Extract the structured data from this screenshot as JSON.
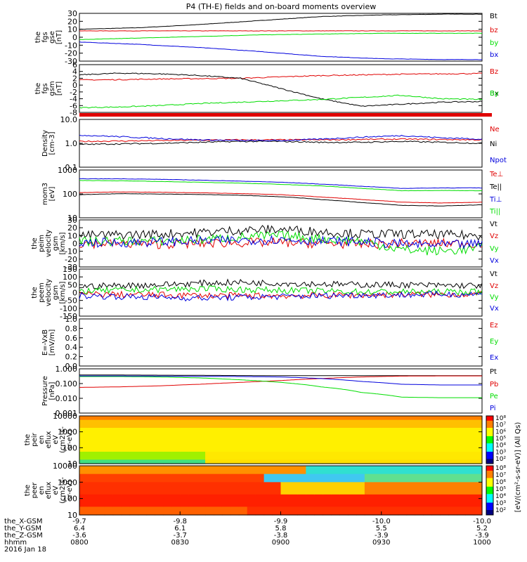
{
  "title": "P4 (TH-E) fields and on-board moments overview",
  "colors": {
    "black": "#000000",
    "red": "#e00000",
    "green": "#00dd00",
    "blue": "#0000dd"
  },
  "chart_data": [
    {
      "id": "p1",
      "type": "line",
      "ylabel": [
        "the",
        "fgs",
        "gse",
        "[nT]"
      ],
      "ylim": [
        -30,
        30
      ],
      "yticks": [
        "30",
        "20",
        "10",
        "0",
        "-10",
        "-20",
        "-30"
      ],
      "x": [
        0,
        0.15,
        0.3,
        0.45,
        0.6,
        0.75,
        0.9,
        1.0
      ],
      "series": [
        {
          "name": "Bt",
          "color": "#000000",
          "values": [
            10,
            12,
            16,
            21,
            26,
            28,
            29,
            29
          ]
        },
        {
          "name": "bz",
          "color": "#e00000",
          "values": [
            8,
            8,
            8,
            8,
            8,
            8,
            8,
            8
          ]
        },
        {
          "name": "by",
          "color": "#00dd00",
          "values": [
            -3,
            -1,
            1,
            3,
            4,
            5,
            5,
            5
          ]
        },
        {
          "name": "bx",
          "color": "#0000dd",
          "values": [
            -6,
            -9,
            -13,
            -18,
            -24,
            -27,
            -28,
            -28
          ]
        }
      ]
    },
    {
      "id": "p2",
      "type": "line",
      "ylabel": [
        "the",
        "fgs",
        "gsm",
        "[nT]"
      ],
      "ylim": [
        -8,
        6
      ],
      "yticks": [
        "6",
        "4",
        "2",
        "0",
        "-2",
        "-4",
        "-6",
        "-8"
      ],
      "x": [
        0,
        0.1,
        0.2,
        0.3,
        0.4,
        0.5,
        0.6,
        0.7,
        0.8,
        0.9,
        1.0
      ],
      "series": [
        {
          "name": "Bz",
          "color": "#e00000",
          "values": [
            1.5,
            1.6,
            1.8,
            1.9,
            2.0,
            2.4,
            2.8,
            3.0,
            3.2,
            3.3,
            3.4
          ]
        },
        {
          "name": "Bx",
          "color": "#000000",
          "values": [
            3.0,
            3.5,
            3.3,
            2.8,
            2.0,
            -1.0,
            -4.0,
            -6.2,
            -5.6,
            -5.0,
            -4.8
          ]
        },
        {
          "name": "By",
          "color": "#00dd00",
          "values": [
            -6.6,
            -6.4,
            -6.0,
            -5.4,
            -5.0,
            -4.6,
            -4.2,
            -3.6,
            -3.0,
            -4.0,
            -4.2
          ]
        }
      ]
    },
    {
      "id": "p3",
      "type": "line",
      "ylabel": [
        "Density",
        "[cm-3]"
      ],
      "ylim": [
        0.1,
        10
      ],
      "log": true,
      "yticks": [
        "10.0",
        "1.0",
        "0.1"
      ],
      "x": [
        0,
        0.1,
        0.2,
        0.3,
        0.4,
        0.5,
        0.6,
        0.7,
        0.8,
        0.9,
        1.0
      ],
      "series": [
        {
          "name": "Ne",
          "color": "#e00000",
          "values": [
            1.2,
            1.25,
            1.3,
            1.35,
            1.4,
            1.4,
            1.4,
            1.45,
            1.5,
            1.45,
            1.4
          ]
        },
        {
          "name": "Ni",
          "color": "#000000",
          "values": [
            0.9,
            0.95,
            1.0,
            1.1,
            1.2,
            1.2,
            1.1,
            1.1,
            1.2,
            1.1,
            1.0
          ]
        },
        {
          "name": "Npot",
          "color": "#0000dd",
          "values": [
            2.2,
            1.9,
            1.6,
            1.4,
            1.3,
            1.3,
            1.5,
            1.8,
            2.1,
            1.7,
            1.5
          ]
        }
      ]
    },
    {
      "id": "p4",
      "type": "line",
      "ylabel": [
        "mom3",
        "[eV]"
      ],
      "ylim": [
        10,
        10000
      ],
      "log": true,
      "yticks": [
        "1000",
        "100",
        "10"
      ],
      "x": [
        0,
        0.1,
        0.2,
        0.3,
        0.4,
        0.5,
        0.6,
        0.7,
        0.8,
        0.9,
        1.0
      ],
      "series": [
        {
          "name": "Te⊥",
          "color": "#e00000",
          "values": [
            380,
            420,
            400,
            370,
            330,
            280,
            200,
            140,
            95,
            85,
            95
          ]
        },
        {
          "name": "Te||",
          "color": "#000000",
          "values": [
            280,
            330,
            310,
            290,
            260,
            210,
            140,
            90,
            60,
            55,
            65
          ]
        },
        {
          "name": "Ti⊥",
          "color": "#0000dd",
          "values": [
            2800,
            2800,
            2600,
            2300,
            2000,
            1700,
            1300,
            950,
            700,
            750,
            750
          ]
        },
        {
          "name": "Ti||",
          "color": "#00dd00",
          "values": [
            2200,
            2100,
            1900,
            1700,
            1500,
            1250,
            1000,
            700,
            500,
            520,
            500
          ]
        }
      ]
    },
    {
      "id": "p5",
      "type": "line",
      "ylabel": [
        "the",
        "peim",
        "velocity",
        "gsm",
        "[km/s]"
      ],
      "ylim": [
        -30,
        30
      ],
      "yticks": [
        "30",
        "20",
        "10",
        "0",
        "-10",
        "-20",
        "-30"
      ],
      "x": [
        0,
        0.1,
        0.2,
        0.3,
        0.4,
        0.5,
        0.6,
        0.7,
        0.8,
        0.9,
        1.0
      ],
      "series": [
        {
          "name": "Vt",
          "color": "#000000",
          "values": [
            10,
            11,
            12,
            14,
            17,
            18,
            15,
            12,
            12,
            11,
            10
          ]
        },
        {
          "name": "Vz",
          "color": "#e00000",
          "values": [
            0,
            0,
            -1,
            0,
            1,
            1,
            0,
            -1,
            0,
            0,
            0
          ]
        },
        {
          "name": "Vy",
          "color": "#00dd00",
          "values": [
            2,
            3,
            3,
            5,
            8,
            10,
            6,
            3,
            -8,
            -10,
            -6
          ]
        },
        {
          "name": "Vx",
          "color": "#0000dd",
          "values": [
            1,
            1,
            2,
            3,
            4,
            5,
            3,
            2,
            -1,
            -2,
            -1
          ]
        }
      ]
    },
    {
      "id": "p6",
      "type": "line",
      "ylabel": [
        "the",
        "peem",
        "velocity",
        "gsm",
        "[km/s]"
      ],
      "ylim": [
        -150,
        150
      ],
      "yticks": [
        "150",
        "100",
        "50",
        "0",
        "-50",
        "-100",
        "-150"
      ],
      "x": [
        0,
        0.1,
        0.2,
        0.3,
        0.4,
        0.5,
        0.6,
        0.7,
        0.8,
        0.9,
        1.0
      ],
      "series": [
        {
          "name": "Vt",
          "color": "#000000",
          "values": [
            40,
            45,
            50,
            60,
            65,
            60,
            55,
            50,
            50,
            45,
            45
          ]
        },
        {
          "name": "Vz",
          "color": "#e00000",
          "values": [
            -10,
            -12,
            -15,
            -18,
            -20,
            -20,
            -18,
            -15,
            -12,
            -12,
            -10
          ]
        },
        {
          "name": "Vy",
          "color": "#00dd00",
          "values": [
            10,
            15,
            20,
            25,
            20,
            15,
            10,
            5,
            5,
            5,
            5
          ]
        },
        {
          "name": "Vx",
          "color": "#0000dd",
          "values": [
            -20,
            -25,
            -30,
            -35,
            -30,
            -25,
            -20,
            -15,
            -15,
            -10,
            -10
          ]
        }
      ]
    },
    {
      "id": "p7",
      "type": "line",
      "ylabel": [
        "E=-VxB",
        "[mV/m]"
      ],
      "ylim": [
        0,
        1
      ],
      "yticks": [
        "1.0",
        "0.8",
        "0.6",
        "0.4",
        "0.2",
        "0.0"
      ],
      "x": [],
      "series": [
        {
          "name": "Ez",
          "color": "#e00000",
          "values": []
        },
        {
          "name": "Ey",
          "color": "#00dd00",
          "values": []
        },
        {
          "name": "Ex",
          "color": "#0000dd",
          "values": []
        }
      ]
    },
    {
      "id": "p8",
      "type": "line",
      "ylabel": [
        "Pressure",
        "[nPa]"
      ],
      "ylim": [
        0.001,
        1
      ],
      "log": true,
      "yticks": [
        "1.000",
        "0.100",
        "0.010",
        "0.001"
      ],
      "x": [
        0,
        0.1,
        0.2,
        0.3,
        0.4,
        0.5,
        0.6,
        0.7,
        0.8,
        0.9,
        1.0
      ],
      "series": [
        {
          "name": "Pt",
          "color": "#000000",
          "values": [
            0.38,
            0.38,
            0.37,
            0.36,
            0.35,
            0.34,
            0.34,
            0.34,
            0.34,
            0.34,
            0.34
          ]
        },
        {
          "name": "Pb",
          "color": "#e00000",
          "values": [
            0.055,
            0.06,
            0.07,
            0.09,
            0.12,
            0.16,
            0.22,
            0.28,
            0.32,
            0.33,
            0.33
          ]
        },
        {
          "name": "Pe",
          "color": "#00dd00",
          "values": [
            0.3,
            0.3,
            0.28,
            0.24,
            0.18,
            0.12,
            0.06,
            0.025,
            0.012,
            0.011,
            0.011
          ]
        },
        {
          "name": "Pi",
          "color": "#0000dd",
          "values": [
            0.33,
            0.33,
            0.32,
            0.31,
            0.3,
            0.28,
            0.22,
            0.14,
            0.09,
            0.08,
            0.08
          ]
        }
      ]
    },
    {
      "id": "p9",
      "type": "heatmap",
      "ylabel": [
        "the",
        "peir",
        "en",
        "eflux",
        "eV",
        "(cm2-s-",
        "sr-eV)"
      ],
      "ylim": [
        5,
        20000
      ],
      "log": true,
      "yticks": [
        "10000",
        "1000",
        "100",
        "10"
      ]
    },
    {
      "id": "p10",
      "type": "heatmap",
      "ylabel": [
        "the",
        "peer",
        "en",
        "eflux",
        "eV",
        "(cm2-s-",
        "sr-eV)"
      ],
      "ylim": [
        5,
        20000
      ],
      "log": true,
      "yticks": [
        "10000",
        "1000",
        "100",
        "10"
      ]
    }
  ],
  "colorbar": {
    "labels": [
      "10⁸",
      "10⁷",
      "10⁶",
      "10⁵",
      "10⁴",
      "10³",
      "10²"
    ],
    "labels2": [
      "10⁸",
      "10⁷",
      "10⁶",
      "10⁵",
      "10⁴",
      "10³",
      "10²"
    ],
    "title": "[eV/(cm²-s-sr-eV)] (All Qs)"
  },
  "xaxis": {
    "rows": [
      {
        "label": "the_X-GSM",
        "values": [
          "-9.7",
          "-9.8",
          "-9.9",
          "-10.0",
          "-10.0"
        ]
      },
      {
        "label": "the_Y-GSM",
        "values": [
          "6.4",
          "6.1",
          "5.8",
          "5.5",
          "5.2"
        ]
      },
      {
        "label": "the_Z-GSM",
        "values": [
          "-3.6",
          "-3.7",
          "-3.8",
          "-3.9",
          "-3.9"
        ]
      },
      {
        "label": "hhmm",
        "values": [
          "0800",
          "0830",
          "0900",
          "0930",
          "1000"
        ]
      }
    ],
    "date": "2016 Jan 18"
  }
}
